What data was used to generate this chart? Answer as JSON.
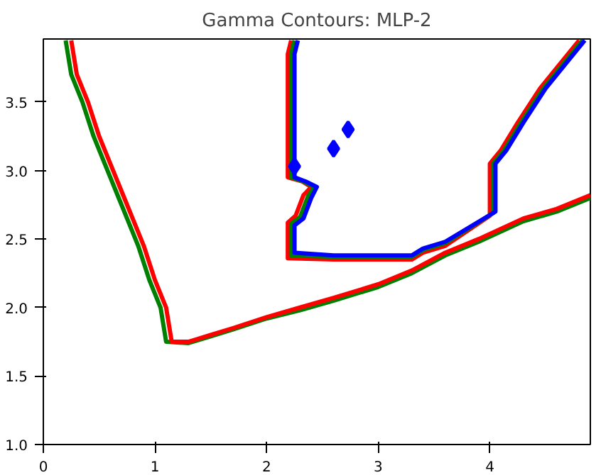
{
  "chart_data": {
    "type": "line",
    "title": "Gamma Contours: MLP-2",
    "xlim": [
      0,
      4.9
    ],
    "ylim": [
      1,
      3.96
    ],
    "xticks": [
      0,
      1,
      2,
      3,
      4
    ],
    "yticks": [
      {
        "value": 1,
        "label": "1.0"
      },
      {
        "value": 1.5,
        "label": "1.5"
      },
      {
        "value": 2,
        "label": "2.0"
      },
      {
        "value": 2.5,
        "label": "2.5"
      },
      {
        "value": 3,
        "label": "3.0"
      },
      {
        "value": 3.5,
        "label": "3.5"
      }
    ],
    "grid": false,
    "marker": "none",
    "line_style": "solid",
    "series": [
      {
        "color": "#008000",
        "x": [
          0.2,
          0.25,
          0.35,
          0.45,
          0.55,
          0.65,
          0.75,
          0.85,
          0.95,
          1.05,
          1.1,
          1.3,
          1.5,
          1.7,
          2.0,
          2.3,
          2.6,
          3.0,
          3.3,
          3.6,
          3.9,
          4.3,
          4.6,
          4.9
        ],
        "values": [
          3.95,
          3.7,
          3.5,
          3.25,
          3.05,
          2.85,
          2.65,
          2.45,
          2.2,
          2.0,
          1.75,
          1.74,
          1.79,
          1.84,
          1.92,
          1.98,
          2.05,
          2.15,
          2.25,
          2.38,
          2.48,
          2.63,
          2.7,
          2.8
        ]
      },
      {
        "color": "#ff0000",
        "x": [
          0.25,
          0.3,
          0.4,
          0.5,
          0.6,
          0.7,
          0.8,
          0.9,
          1.0,
          1.1,
          1.15,
          1.3,
          1.5,
          1.7,
          2.0,
          2.3,
          2.6,
          3.0,
          3.3,
          3.6,
          3.9,
          4.3,
          4.6,
          4.9
        ],
        "values": [
          3.95,
          3.7,
          3.5,
          3.25,
          3.05,
          2.85,
          2.65,
          2.45,
          2.2,
          2.0,
          1.75,
          1.75,
          1.8,
          1.85,
          1.93,
          2.0,
          2.07,
          2.17,
          2.27,
          2.4,
          2.5,
          2.65,
          2.72,
          2.82
        ]
      },
      {
        "color": "#ff0000",
        "x": [
          2.22,
          2.19,
          2.19,
          2.32,
          2.4,
          2.33,
          2.26,
          2.19,
          2.19,
          2.6,
          3.3,
          3.4,
          3.6,
          4.0,
          4.0,
          4.1,
          4.25,
          4.45,
          4.65,
          4.8
        ],
        "values": [
          3.95,
          3.85,
          2.95,
          2.92,
          2.88,
          2.82,
          2.67,
          2.62,
          2.36,
          2.35,
          2.35,
          2.4,
          2.45,
          2.67,
          3.05,
          3.15,
          3.35,
          3.6,
          3.8,
          3.95
        ]
      },
      {
        "color": "#008000",
        "x": [
          2.25,
          2.22,
          2.22,
          2.33,
          2.43,
          2.37,
          2.3,
          2.22,
          2.22,
          2.6,
          3.3,
          3.4,
          3.6,
          4.03,
          4.03,
          4.13,
          4.28,
          4.48,
          4.68,
          4.83
        ],
        "values": [
          3.95,
          3.85,
          2.95,
          2.92,
          2.88,
          2.81,
          2.66,
          2.61,
          2.38,
          2.37,
          2.37,
          2.42,
          2.47,
          2.69,
          3.05,
          3.15,
          3.35,
          3.6,
          3.8,
          3.95
        ]
      },
      {
        "color": "#0000ff",
        "x": [
          2.28,
          2.25,
          2.25,
          2.35,
          2.45,
          2.4,
          2.33,
          2.25,
          2.25,
          2.6,
          3.3,
          3.4,
          3.6,
          4.05,
          4.05,
          4.15,
          4.3,
          4.5,
          4.7,
          4.85
        ],
        "values": [
          3.95,
          3.85,
          2.95,
          2.92,
          2.88,
          2.8,
          2.65,
          2.6,
          2.4,
          2.38,
          2.38,
          2.43,
          2.48,
          2.7,
          3.05,
          3.15,
          3.35,
          3.6,
          3.8,
          3.95
        ]
      },
      {
        "type": "scatter",
        "marker": "diamond",
        "color": "#0000ff",
        "x": [
          2.25,
          2.6,
          2.73
        ],
        "values": [
          3.03,
          3.16,
          3.3
        ]
      }
    ]
  }
}
